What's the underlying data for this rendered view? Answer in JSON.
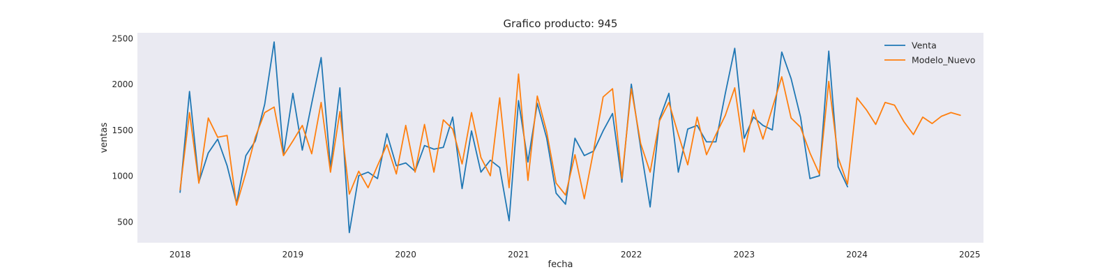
{
  "chart_data": {
    "type": "line",
    "title": "Grafico producto: 945",
    "xlabel": "fecha",
    "ylabel": "ventas",
    "xlim": [
      "2017-08-15",
      "2025-02-15"
    ],
    "ylim": [
      270,
      2560
    ],
    "xticks": [
      "2018",
      "2019",
      "2020",
      "2021",
      "2022",
      "2023",
      "2024",
      "2025"
    ],
    "yticks": [
      500,
      1000,
      1500,
      2000,
      2500
    ],
    "grid": false,
    "legend_position": "top-right",
    "background": "#eaeaf2",
    "series": [
      {
        "name": "Venta",
        "color": "#1f77b4",
        "start": "2018-01",
        "values": [
          820,
          1920,
          930,
          1250,
          1400,
          1110,
          700,
          1220,
          1380,
          1780,
          2460,
          1230,
          1900,
          1280,
          1790,
          2290,
          1090,
          1960,
          380,
          1000,
          1040,
          970,
          1460,
          1110,
          1140,
          1050,
          1330,
          1290,
          1310,
          1640,
          860,
          1490,
          1040,
          1170,
          1090,
          510,
          1820,
          1150,
          1790,
          1410,
          810,
          690,
          1410,
          1220,
          1270,
          1490,
          1680,
          930,
          2000,
          1300,
          660,
          1620,
          1900,
          1040,
          1510,
          1550,
          1370,
          1370,
          1900,
          2390,
          1410,
          1640,
          1550,
          1500,
          2350,
          2060,
          1640,
          970,
          1000,
          2360,
          1100,
          880
        ]
      },
      {
        "name": "Modelo_Nuevo",
        "color": "#ff7f0e",
        "start": "2018-01",
        "values": [
          850,
          1690,
          920,
          1630,
          1420,
          1440,
          680,
          1030,
          1420,
          1690,
          1750,
          1220,
          1380,
          1550,
          1240,
          1800,
          1040,
          1700,
          800,
          1050,
          870,
          1110,
          1340,
          1020,
          1550,
          1040,
          1560,
          1040,
          1610,
          1510,
          1130,
          1690,
          1200,
          1000,
          1850,
          870,
          2110,
          950,
          1870,
          1480,
          920,
          790,
          1230,
          750,
          1280,
          1860,
          1950,
          970,
          1950,
          1350,
          1040,
          1600,
          1800,
          1450,
          1120,
          1640,
          1230,
          1450,
          1660,
          1960,
          1260,
          1720,
          1400,
          1740,
          2080,
          1630,
          1530,
          1250,
          1020,
          2030,
          1200,
          910,
          1850,
          1720,
          1560,
          1800,
          1770,
          1590,
          1450,
          1640,
          1570,
          1650,
          1690,
          1660
        ]
      }
    ]
  }
}
